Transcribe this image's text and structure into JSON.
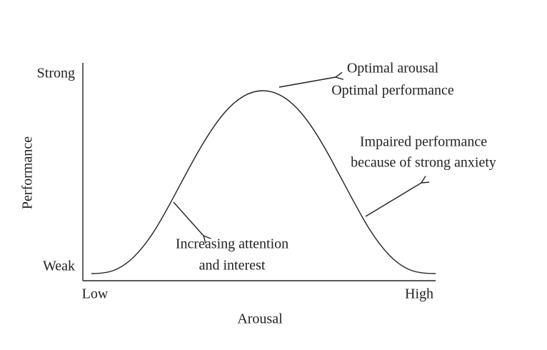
{
  "axes": {
    "y": {
      "label": "Performance",
      "top": "Strong",
      "bottom": "Weak"
    },
    "x": {
      "label": "Arousal",
      "left": "Low",
      "right": "High"
    }
  },
  "annotations": [
    {
      "lines": [
        "Optimal arousal",
        "Optimal performance"
      ]
    },
    {
      "lines": [
        "Impaired performance",
        "because of strong anxiety"
      ]
    },
    {
      "lines": [
        "Increasing attention",
        "and interest"
      ]
    }
  ]
}
